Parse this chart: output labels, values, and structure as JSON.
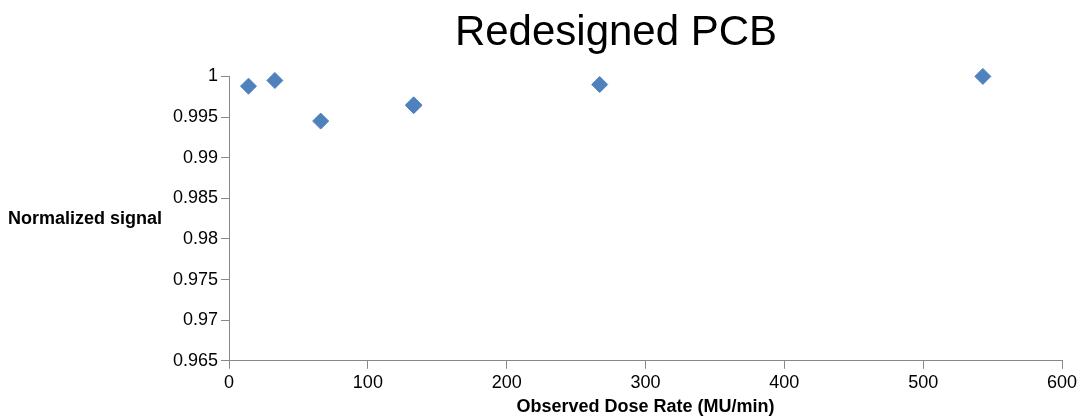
{
  "chart_data": {
    "type": "scatter",
    "title": "Redesigned PCB",
    "xlabel": "Observed Dose Rate (MU/min)",
    "ylabel": "Normalized signal",
    "x": [
      14,
      33,
      66,
      133,
      133,
      267,
      543
    ],
    "series": [
      {
        "color": "#4f81bd",
        "values": [
          0.9988,
          0.9995,
          0.9945,
          0.9964,
          0.9965,
          0.999,
          1.0
        ]
      }
    ],
    "xlim": [
      0,
      600
    ],
    "xticks": [
      0,
      100,
      200,
      300,
      400,
      500,
      600
    ],
    "ylim": [
      0.965,
      1
    ],
    "yticks": [
      {
        "value": 0.965,
        "label": "0.965"
      },
      {
        "value": 0.97,
        "label": "0.97"
      },
      {
        "value": 0.975,
        "label": "0.975"
      },
      {
        "value": 0.98,
        "label": "0.98"
      },
      {
        "value": 0.985,
        "label": "0.985"
      },
      {
        "value": 0.99,
        "label": "0.99"
      },
      {
        "value": 0.995,
        "label": "0.995"
      },
      {
        "value": 1,
        "label": "1"
      }
    ],
    "grid": false,
    "legend": false,
    "marker": "diamond"
  }
}
